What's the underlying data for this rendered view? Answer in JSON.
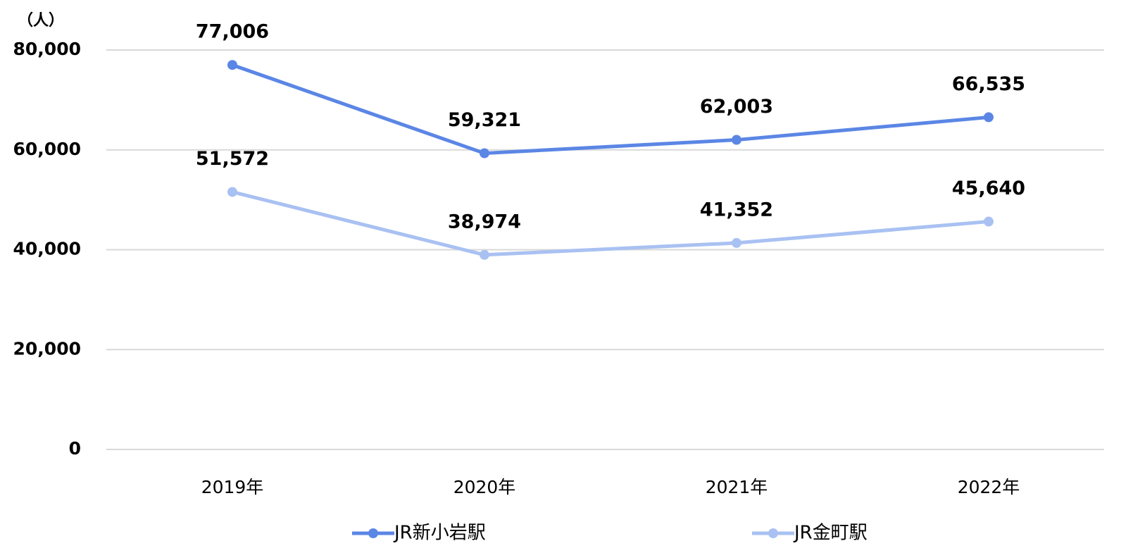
{
  "chart_data": {
    "type": "line",
    "ylabel": "（人）",
    "categories": [
      "2019年",
      "2020年",
      "2021年",
      "2022年"
    ],
    "series": [
      {
        "name": "JR新小岩駅",
        "color": "#5b86e5",
        "values": [
          77006,
          59321,
          62003,
          66535
        ],
        "value_labels": [
          "77,006",
          "59,321",
          "62,003",
          "66,535"
        ]
      },
      {
        "name": "JR金町駅",
        "color": "#a9c1f2",
        "values": [
          51572,
          38974,
          41352,
          45640
        ],
        "value_labels": [
          "51,572",
          "38,974",
          "41,352",
          "45,640"
        ]
      }
    ],
    "ylim": [
      0,
      80000
    ],
    "yticks": [
      0,
      {
        "value": 20000,
        "label": "20,000"
      },
      {
        "value": 40000,
        "label": "40,000"
      },
      {
        "value": 60000,
        "label": "60,000"
      },
      {
        "value": 80000,
        "label": "80,000"
      }
    ],
    "grid": true,
    "legend": "bottom"
  }
}
